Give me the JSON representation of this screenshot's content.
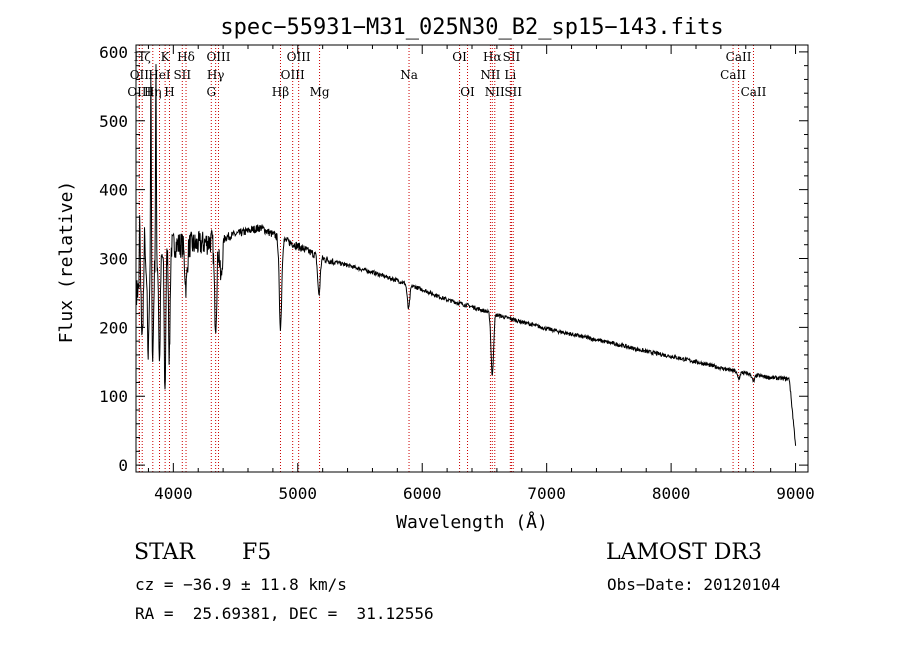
{
  "chart_data": {
    "type": "line",
    "title": "spec−55931−M31_025N30_B2_sp15−143.fits",
    "xlabel": "Wavelength (Å)",
    "ylabel": "Flux (relative)",
    "xlim": [
      3700,
      9100
    ],
    "ylim": [
      -10,
      610
    ],
    "x_ticks": [
      4000,
      5000,
      6000,
      7000,
      8000,
      9000
    ],
    "y_ticks": [
      0,
      100,
      200,
      300,
      400,
      500,
      600
    ],
    "line_color": "#000000",
    "marker_color": "#cc0000",
    "spectrum": {
      "continuum_knots": [
        [
          3700,
          250
        ],
        [
          3800,
          280
        ],
        [
          3900,
          300
        ],
        [
          4000,
          320
        ],
        [
          4200,
          320
        ],
        [
          4400,
          330
        ],
        [
          4600,
          340
        ],
        [
          4700,
          345
        ],
        [
          4800,
          335
        ],
        [
          5000,
          318
        ],
        [
          5200,
          300
        ],
        [
          5400,
          290
        ],
        [
          5600,
          280
        ],
        [
          5800,
          268
        ],
        [
          6000,
          255
        ],
        [
          6200,
          240
        ],
        [
          6400,
          230
        ],
        [
          6600,
          218
        ],
        [
          6800,
          208
        ],
        [
          7000,
          198
        ],
        [
          7200,
          190
        ],
        [
          7400,
          182
        ],
        [
          7600,
          174
        ],
        [
          7800,
          165
        ],
        [
          8000,
          158
        ],
        [
          8200,
          150
        ],
        [
          8400,
          141
        ],
        [
          8600,
          133
        ],
        [
          8800,
          127
        ],
        [
          8950,
          125
        ],
        [
          9000,
          30
        ]
      ],
      "absorption_lines": [
        [
          3750,
          80
        ],
        [
          3798,
          120
        ],
        [
          3835,
          130
        ],
        [
          3889,
          150
        ],
        [
          3933,
          200
        ],
        [
          3968,
          160
        ],
        [
          4102,
          60
        ],
        [
          4340,
          120
        ],
        [
          4383,
          60
        ],
        [
          4861,
          130
        ],
        [
          5170,
          55
        ],
        [
          5890,
          35
        ],
        [
          6563,
          90
        ],
        [
          8542,
          10
        ],
        [
          8662,
          10
        ]
      ],
      "emission_spikes": [
        [
          3730,
          100
        ],
        [
          3770,
          80
        ],
        [
          3820,
          290
        ],
        [
          3860,
          300
        ]
      ]
    },
    "line_markers": [
      {
        "label": "Hζ",
        "wavelength": 3750,
        "row": 0
      },
      {
        "label": "OII",
        "wavelength": 3727,
        "row": 1
      },
      {
        "label": "OIII",
        "wavelength": 3727,
        "row": 2
      },
      {
        "label": "Hη",
        "wavelength": 3835,
        "row": 2
      },
      {
        "label": "HeI",
        "wavelength": 3889,
        "row": 1
      },
      {
        "label": "K",
        "wavelength": 3934,
        "row": 0
      },
      {
        "label": "H",
        "wavelength": 3969,
        "row": 2
      },
      {
        "label": "SII",
        "wavelength": 4072,
        "row": 1
      },
      {
        "label": "Hδ",
        "wavelength": 4102,
        "row": 0
      },
      {
        "label": "OIII",
        "wavelength": 4363,
        "row": 0
      },
      {
        "label": "Hγ",
        "wavelength": 4340,
        "row": 1
      },
      {
        "label": "G",
        "wavelength": 4305,
        "row": 2
      },
      {
        "label": "Hβ",
        "wavelength": 4861,
        "row": 2
      },
      {
        "label": "OIII",
        "wavelength": 4959,
        "row": 1
      },
      {
        "label": "OIII",
        "wavelength": 5007,
        "row": 0
      },
      {
        "label": "Mg",
        "wavelength": 5175,
        "row": 2
      },
      {
        "label": "Na",
        "wavelength": 5894,
        "row": 1
      },
      {
        "label": "OI",
        "wavelength": 6300,
        "row": 0
      },
      {
        "label": "OI",
        "wavelength": 6364,
        "row": 2
      },
      {
        "label": "Hα",
        "wavelength": 6563,
        "row": 0
      },
      {
        "label": "NII",
        "wavelength": 6548,
        "row": 1
      },
      {
        "label": "NII",
        "wavelength": 6583,
        "row": 2
      },
      {
        "label": "SII",
        "wavelength": 6717,
        "row": 0
      },
      {
        "label": "Li",
        "wavelength": 6708,
        "row": 1
      },
      {
        "label": "SII",
        "wavelength": 6731,
        "row": 2
      },
      {
        "label": "CaII",
        "wavelength": 8542,
        "row": 0
      },
      {
        "label": "CaII",
        "wavelength": 8498,
        "row": 1
      },
      {
        "label": "CaII",
        "wavelength": 8662,
        "row": 2
      }
    ]
  },
  "info": {
    "object_class": "STAR",
    "subclass": "F5",
    "survey": "LAMOST DR3",
    "redshift": "cz = −36.9 ± 11.8 km/s",
    "obs_date": "Obs−Date: 20120104",
    "coords": "RA =  25.69381, DEC =  31.12556"
  }
}
